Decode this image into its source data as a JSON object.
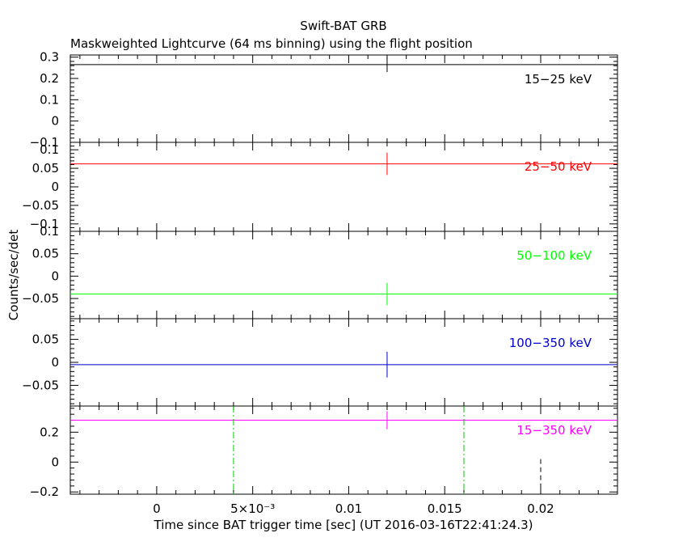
{
  "header": {
    "title": "Swift-BAT GRB",
    "subtitle": "Maskweighted Lightcurve (64 ms binning) using the flight position"
  },
  "axes": {
    "xlabel": "Time since BAT trigger time [sec] (UT 2016-03-16T22:41:24.3)",
    "ylabel": "Counts/sec/det"
  },
  "chart_data": {
    "type": "line",
    "title": "Swift-BAT GRB",
    "subtitle": "Maskweighted Lightcurve (64 ms binning) using the flight position",
    "xlabel": "Time since BAT trigger time [sec] (UT 2016-03-16T22:41:24.3)",
    "ylabel": "Counts/sec/det",
    "xlim": [
      -0.0045,
      0.024
    ],
    "xticks": [
      0,
      0.005,
      0.01,
      0.015,
      0.02
    ],
    "xtick_labels": [
      "0",
      "5×10⁻³",
      "0.01",
      "0.015",
      "0.02"
    ],
    "panels": [
      {
        "name": "15-25 keV",
        "label": "15−25 keV",
        "color": "#000000",
        "ylim": [
          -0.1,
          0.31
        ],
        "yticks": [
          -0.1,
          0,
          0.1,
          0.2,
          0.3
        ],
        "ytick_labels": [
          "−0.1",
          "0",
          "0.1",
          "0.2",
          "0.3"
        ],
        "x": 0.012,
        "y": 0.265,
        "err": 0.035
      },
      {
        "name": "25-50 keV",
        "label": "25−50 keV",
        "color": "#ff0000",
        "ylim": [
          -0.12,
          0.12
        ],
        "yticks": [
          -0.1,
          -0.05,
          0,
          0.05,
          0.1
        ],
        "ytick_labels": [
          "−0.1",
          "−0.05",
          "0",
          "0.05",
          "0.1"
        ],
        "x": 0.012,
        "y": 0.062,
        "err": 0.03
      },
      {
        "name": "50-100 keV",
        "label": "50−100 keV",
        "color": "#00ff00",
        "ylim": [
          -0.095,
          0.1
        ],
        "yticks": [
          -0.05,
          0,
          0.05,
          0.1
        ],
        "ytick_labels": [
          "−0.05",
          "0",
          "0.05",
          "0.1"
        ],
        "x": 0.012,
        "y": -0.04,
        "err": 0.025
      },
      {
        "name": "100-350 keV",
        "label": "100−350 keV",
        "color": "#0000cc",
        "ylim": [
          -0.095,
          0.095
        ],
        "yticks": [
          -0.05,
          0,
          0.05
        ],
        "ytick_labels": [
          "−0.05",
          "0",
          "0.05"
        ],
        "x": 0.012,
        "y": -0.005,
        "err": 0.028
      },
      {
        "name": "15-350 keV",
        "label": "15−350 keV",
        "color": "#ff00ff",
        "ylim": [
          -0.215,
          0.375
        ],
        "yticks": [
          -0.2,
          0,
          0.2
        ],
        "ytick_labels": [
          "−0.2",
          "0",
          "0.2"
        ],
        "x": 0.012,
        "y": 0.28,
        "err": 0.06
      }
    ],
    "vlines": [
      {
        "x": 0.004,
        "color": "#00cc00",
        "style": "dashdot",
        "panel": "15-350 keV"
      },
      {
        "x": 0.016,
        "color": "#00cc00",
        "style": "dashdot",
        "panel": "15-350 keV"
      },
      {
        "x": 0.02,
        "color": "#000000",
        "style": "dashed",
        "panel": "15-350 keV",
        "from_y": 0.02
      }
    ]
  }
}
